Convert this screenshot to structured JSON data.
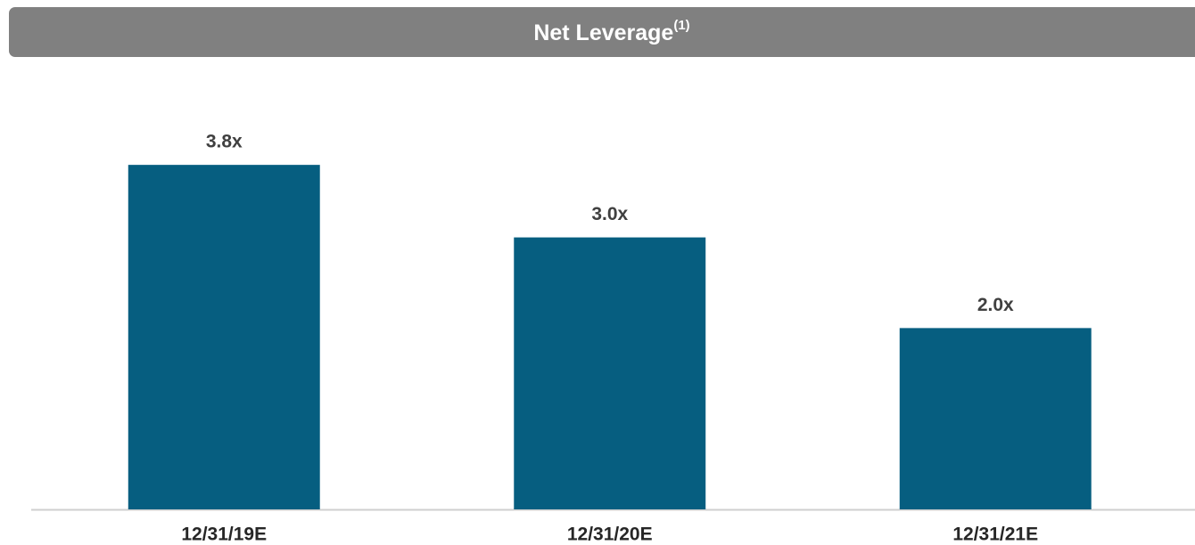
{
  "chart_data": {
    "type": "bar",
    "title": "Net Leverage",
    "title_note": "(1)",
    "categories": [
      "12/31/19E",
      "12/31/20E",
      "12/31/21E"
    ],
    "values": [
      3.8,
      3.0,
      2.0
    ],
    "value_labels": [
      "3.8x",
      "3.0x",
      "2.0x"
    ],
    "color": "#065e80",
    "ylim": [
      0,
      4.6
    ]
  }
}
